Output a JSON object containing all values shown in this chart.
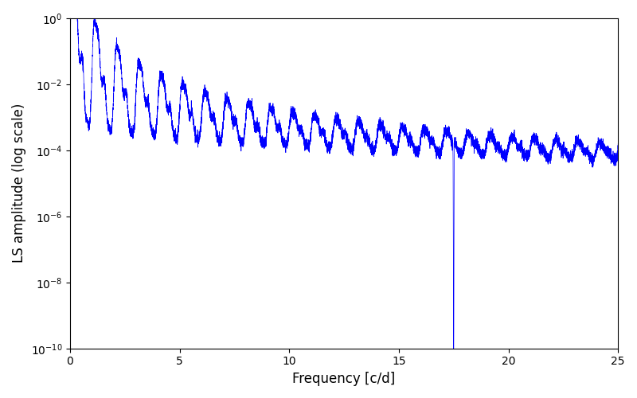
{
  "xlabel": "Frequency [c/d]",
  "ylabel": "LS amplitude (log scale)",
  "xlim": [
    0,
    25
  ],
  "ylim": [
    1e-10,
    1.0
  ],
  "line_color": "#0000ff",
  "background_color": "#ffffff",
  "figsize": [
    8.0,
    5.0
  ],
  "dpi": 100,
  "freq_max": 25.0,
  "n_points": 10000,
  "seed": 12345,
  "null_freq": 17.5,
  "linewidth": 0.5
}
